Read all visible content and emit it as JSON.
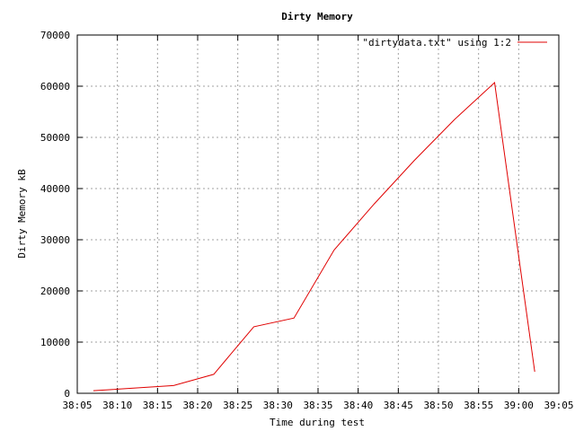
{
  "chart_data": {
    "type": "line",
    "title": "Dirty Memory",
    "xlabel": "Time during test",
    "ylabel": "Dirty Memory kB",
    "x_ticks": [
      "38:05",
      "38:10",
      "38:15",
      "38:20",
      "38:25",
      "38:30",
      "38:35",
      "38:40",
      "38:45",
      "38:50",
      "38:55",
      "39:00",
      "39:05"
    ],
    "xlim": [
      "38:05",
      "39:05"
    ],
    "y_ticks": [
      0,
      10000,
      20000,
      30000,
      40000,
      50000,
      60000,
      70000
    ],
    "ylim": [
      0,
      70000
    ],
    "grid": true,
    "legend_position": "top-right",
    "series": [
      {
        "name": "\"dirtydata.txt\" using 1:2",
        "color": "#e00000",
        "x": [
          "38:07",
          "38:12",
          "38:17",
          "38:22",
          "38:27",
          "38:32",
          "38:37",
          "38:42",
          "38:47",
          "38:52",
          "38:57",
          "39:02"
        ],
        "y": [
          500,
          1000,
          1500,
          3700,
          13000,
          14700,
          28000,
          37000,
          45500,
          53500,
          60700,
          4200
        ]
      }
    ]
  }
}
